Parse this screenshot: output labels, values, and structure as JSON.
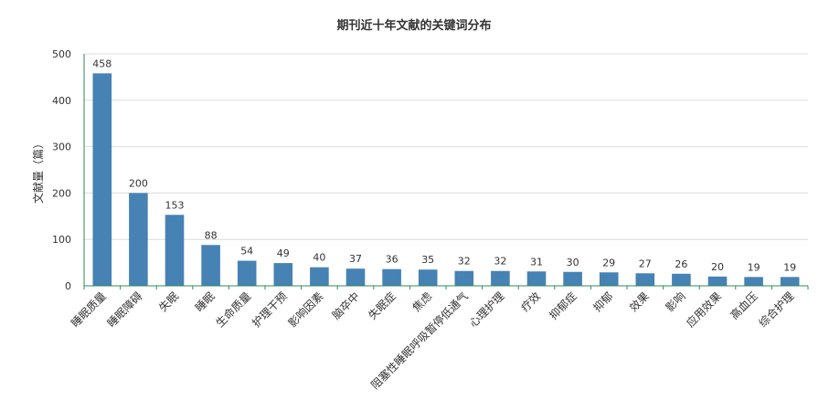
{
  "chart_data": {
    "type": "bar",
    "title": "期刊近十年文献的关键词分布",
    "xlabel": "",
    "ylabel": "文献量（篇）",
    "ylim": [
      0,
      500
    ],
    "yticks": [
      0,
      100,
      200,
      300,
      400,
      500
    ],
    "grid": true,
    "bar_color": "#4682B4",
    "categories": [
      "睡眠质量",
      "睡眠障碍",
      "失眠",
      "睡眠",
      "生命质量",
      "护理干预",
      "影响因素",
      "脑卒中",
      "失眠症",
      "焦虑",
      "阻塞性睡眠呼吸暂停低通气",
      "心理护理",
      "疗效",
      "抑郁症",
      "抑郁",
      "效果",
      "影响",
      "应用效果",
      "高血压",
      "综合护理"
    ],
    "values": [
      458,
      200,
      153,
      88,
      54,
      49,
      40,
      37,
      36,
      35,
      32,
      32,
      31,
      30,
      29,
      27,
      26,
      20,
      19,
      19
    ]
  }
}
